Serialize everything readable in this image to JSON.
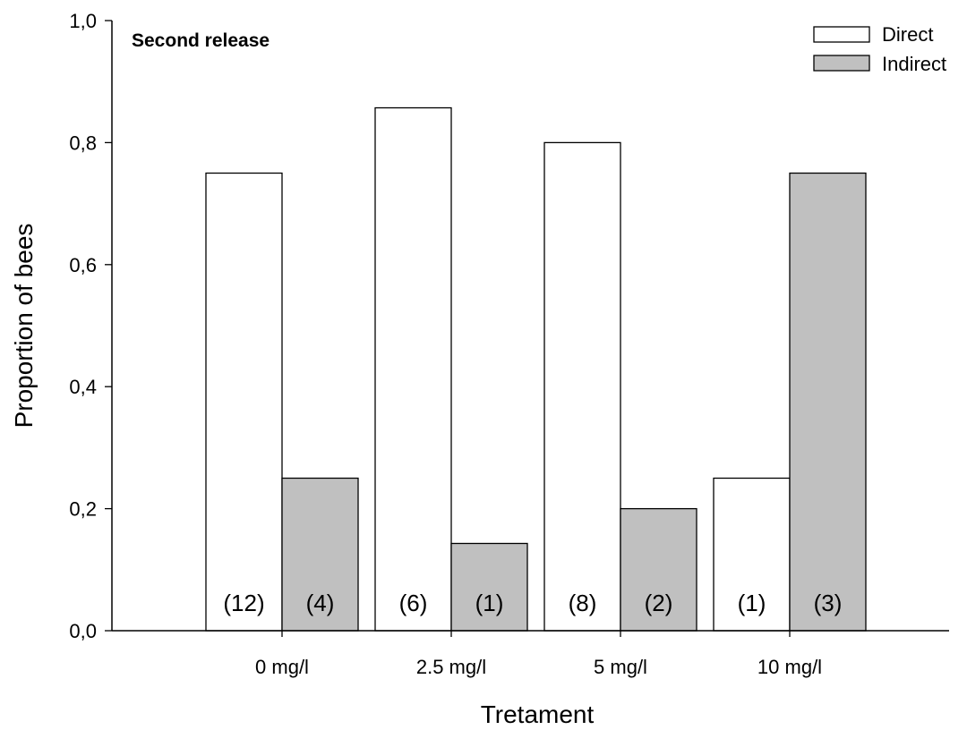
{
  "chart_data": {
    "type": "bar",
    "title": "Second release",
    "xlabel": "Tretament",
    "ylabel": "Proportion of bees",
    "categories": [
      "0 mg/l",
      "2.5 mg/l",
      "5 mg/l",
      "10 mg/l"
    ],
    "series": [
      {
        "name": "Direct",
        "values": [
          0.75,
          0.857,
          0.8,
          0.25
        ],
        "counts": [
          "(12)",
          "(6)",
          "(8)",
          "(1)"
        ],
        "color": "#ffffff"
      },
      {
        "name": "Indirect",
        "values": [
          0.25,
          0.143,
          0.2,
          0.75
        ],
        "counts": [
          "(4)",
          "(1)",
          "(2)",
          "(3)"
        ],
        "color": "#c0c0c0"
      }
    ],
    "ylim": [
      0,
      1.0
    ],
    "yticks": [
      0.0,
      0.2,
      0.4,
      0.6,
      0.8,
      1.0
    ],
    "ytick_labels": [
      "0,0",
      "0,2",
      "0,4",
      "0,6",
      "0,8",
      "1,0"
    ],
    "grid": false,
    "legend_position": "top-right"
  }
}
